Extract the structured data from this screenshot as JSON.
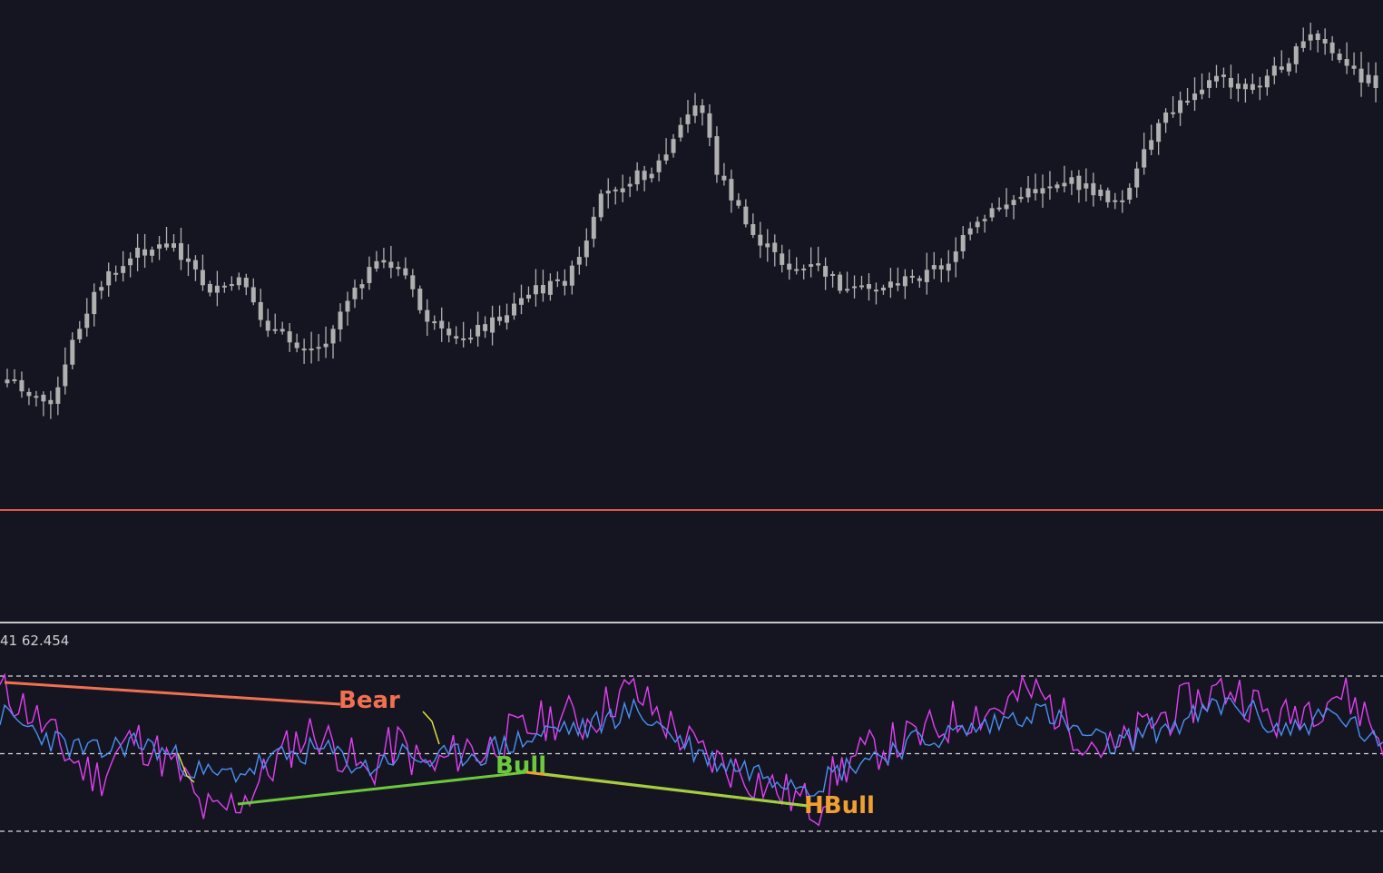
{
  "app": {
    "indicator_readout": "41 62.454"
  },
  "colors": {
    "background": "#151522",
    "candle": "#b0b0b0",
    "separator": "#e05a47",
    "subwindow_border": "#c8c8c8",
    "grid_level": "#d8d8d8",
    "rsi_fast": "#e040f0",
    "rsi_slow": "#4a90f0",
    "bear": "#f07050",
    "bull": "#6cc83c",
    "hidden_bull": "#f0a030",
    "signal": "#e8e840"
  },
  "chart_data": [
    {
      "type": "candlestick",
      "title": "",
      "trend_shape": "rising with pullbacks",
      "close_shape": [
        0.12,
        0.1,
        0.06,
        0.08,
        0.22,
        0.32,
        0.38,
        0.41,
        0.45,
        0.46,
        0.47,
        0.42,
        0.36,
        0.34,
        0.38,
        0.3,
        0.25,
        0.22,
        0.21,
        0.2,
        0.28,
        0.36,
        0.4,
        0.42,
        0.4,
        0.3,
        0.25,
        0.21,
        0.24,
        0.26,
        0.28,
        0.32,
        0.35,
        0.36,
        0.38,
        0.45,
        0.58,
        0.62,
        0.64,
        0.65,
        0.7,
        0.78,
        0.84,
        0.66,
        0.58,
        0.5,
        0.46,
        0.42,
        0.4,
        0.41,
        0.38,
        0.34,
        0.35,
        0.36,
        0.37,
        0.38,
        0.4,
        0.42,
        0.48,
        0.52,
        0.56,
        0.58,
        0.6,
        0.62,
        0.63,
        0.62,
        0.6,
        0.58,
        0.6,
        0.7,
        0.78,
        0.82,
        0.86,
        0.9,
        0.88,
        0.86,
        0.88,
        0.92,
        0.95,
        1.0,
        0.98,
        0.92,
        0.9,
        0.88
      ]
    },
    {
      "type": "line",
      "title": "",
      "levels": [
        70,
        50,
        30
      ],
      "series": [
        {
          "color_key": "rsi_fast",
          "values": [
            66,
            64,
            60,
            55,
            50,
            46,
            44,
            50,
            54,
            52,
            48,
            44,
            36,
            34,
            37,
            40,
            45,
            50,
            54,
            56,
            52,
            49,
            44,
            50,
            53,
            48,
            46,
            49,
            52,
            50,
            54,
            55,
            57,
            59,
            60,
            58,
            61,
            65,
            66,
            62,
            58,
            54,
            50,
            48,
            46,
            44,
            42,
            40,
            38,
            36,
            44,
            48,
            50,
            52,
            53,
            54,
            56,
            58,
            60,
            61,
            62,
            64,
            66,
            63,
            58,
            55,
            52,
            50,
            54,
            58,
            60,
            62,
            64,
            66,
            67,
            64,
            60,
            58,
            62,
            63,
            66,
            64,
            60,
            52
          ]
        },
        {
          "color_key": "rsi_slow",
          "values": [
            60,
            58,
            56,
            54,
            52,
            51,
            50,
            52,
            53,
            52,
            50,
            48,
            45,
            44,
            45,
            46,
            48,
            49,
            50,
            51,
            50,
            48,
            46,
            48,
            50,
            49,
            48,
            49,
            50,
            50,
            52,
            53,
            54,
            56,
            57,
            56,
            58,
            60,
            61,
            59,
            56,
            53,
            50,
            48,
            47,
            46,
            45,
            44,
            43,
            42,
            45,
            47,
            49,
            50,
            52,
            53,
            54,
            55,
            56,
            57,
            58,
            60,
            61,
            60,
            57,
            55,
            53,
            52,
            54,
            56,
            57,
            58,
            60,
            62,
            63,
            61,
            58,
            56,
            57,
            59,
            60,
            58,
            55,
            50
          ]
        }
      ],
      "divergences": [
        {
          "label": "Bear",
          "color_key": "bear"
        },
        {
          "label": "Bull",
          "color_key": "bull"
        },
        {
          "label": "HBull",
          "color_key": "hidden_bull"
        }
      ]
    }
  ]
}
